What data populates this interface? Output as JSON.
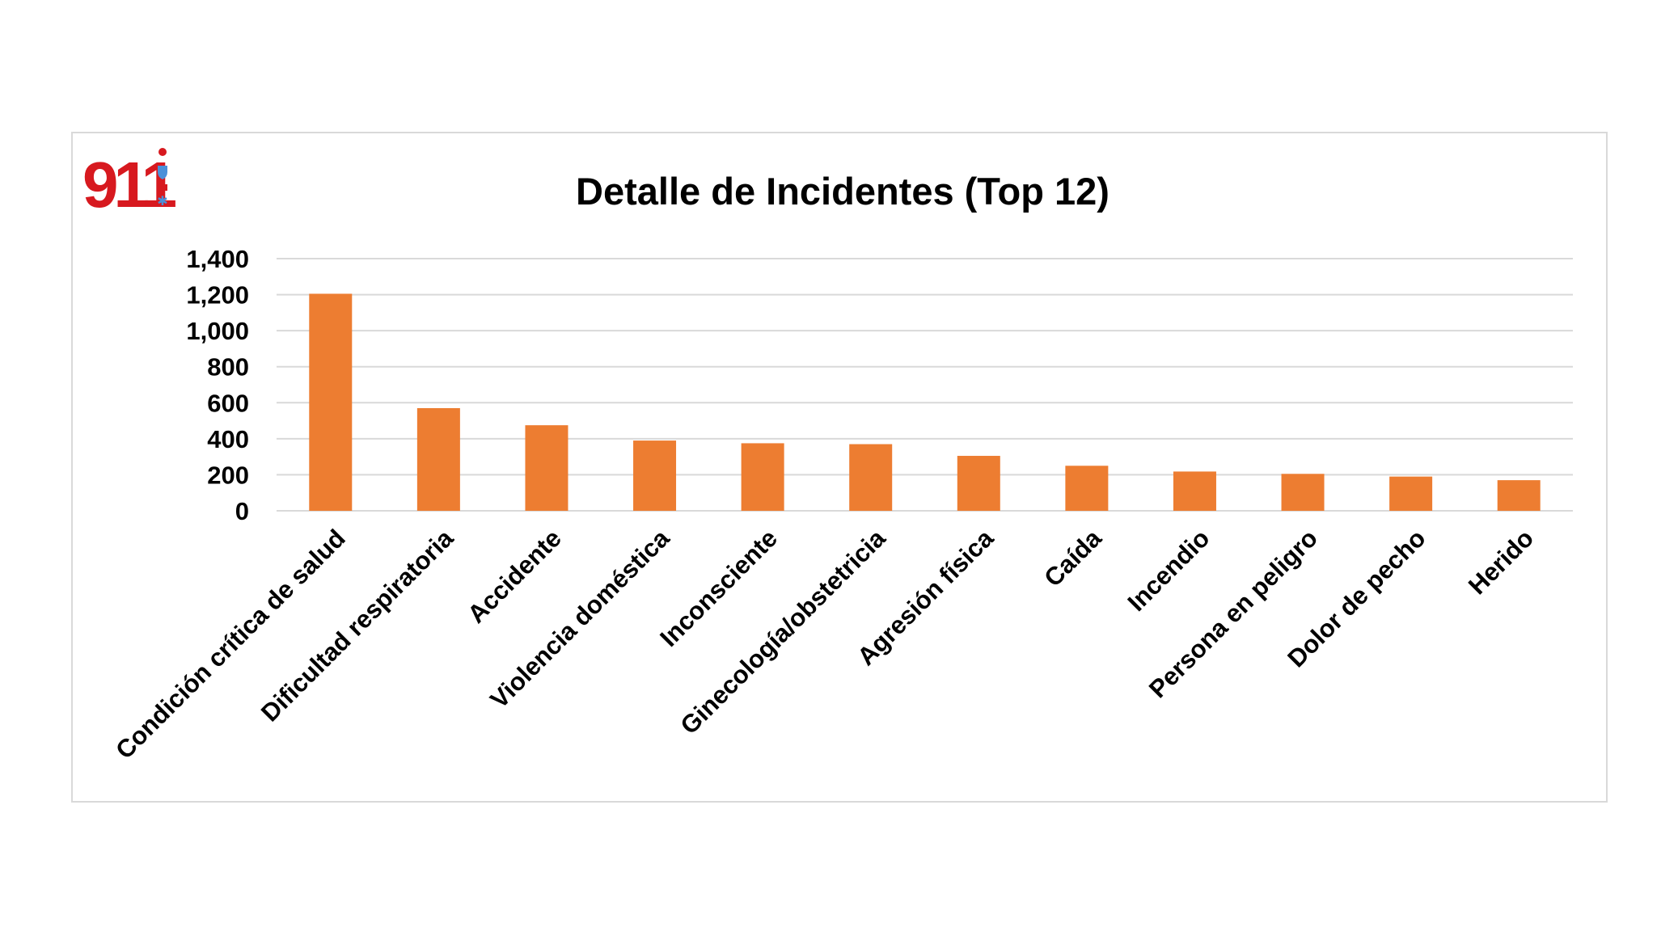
{
  "logo": {
    "text": "911",
    "icon": "911-emergency-logo"
  },
  "chart_data": {
    "type": "bar",
    "title": "Detalle de Incidentes (Top 12)",
    "xlabel": "",
    "ylabel": "",
    "ylim": [
      0,
      1400
    ],
    "yticks": [
      0,
      200,
      400,
      600,
      800,
      1000,
      1200,
      1400
    ],
    "ytick_labels": [
      "0",
      "200",
      "400",
      "600",
      "800",
      "1,000",
      "1,200",
      "1,400"
    ],
    "grid": true,
    "legend": "none",
    "bar_color": "#ED7D31",
    "categories": [
      "Condición crítica de salud",
      "Dificultad respiratoria",
      "Accidente",
      "Violencia doméstica",
      "Inconsciente",
      "Ginecología/obstetricia",
      "Agresión física",
      "Caída",
      "Incendio",
      "Persona en peligro",
      "Dolor de pecho",
      "Herido"
    ],
    "values": [
      1205,
      570,
      475,
      390,
      375,
      370,
      305,
      250,
      218,
      205,
      190,
      170
    ]
  }
}
